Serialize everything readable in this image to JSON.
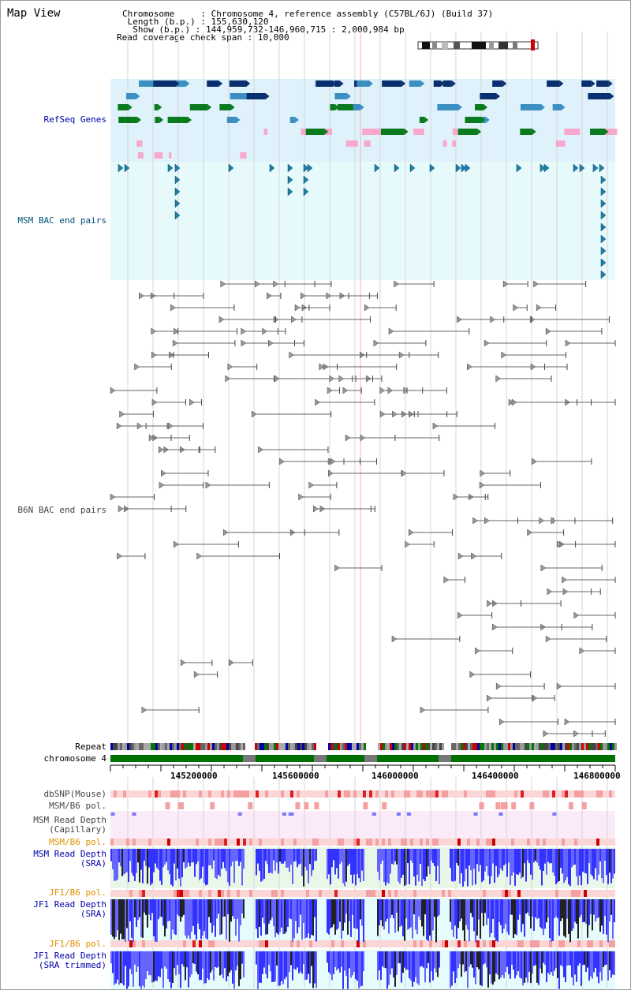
{
  "title": "Map View",
  "info": {
    "chromosome_label": "Chromosome",
    "chromosome_value": "Chromosome 4, reference assembly (C57BL/6J) (Build 37)",
    "length_label": "Length (b.p.)",
    "length_value": "155,630,120",
    "show_label": "Show (b.p.)",
    "show_value": "144,959,732-146,960,715 : 2,000,984 bp",
    "span_label": "Read coverage check span",
    "span_value": "10,000"
  },
  "tracks": {
    "refseq": "RefSeq Genes",
    "msm_bac": "MSM BAC end pairs",
    "b6n_bac": "B6N BAC end pairs",
    "repeat": "Repeat",
    "chromosome": "chromosome 4",
    "dbsnp": "dbSNP(Mouse)",
    "msm_pol1": "MSM/B6 pol.",
    "msm_depth_cap_1": "MSM Read Depth",
    "msm_depth_cap_2": "(Capillary)",
    "msm_pol2": "MSM/B6 pol.",
    "msm_depth_sra_1": "MSM Read Depth",
    "msm_depth_sra_2": "(SRA)",
    "jf1_pol1": "JF1/B6 pol.",
    "jf1_depth_sra_1": "JF1 Read Depth",
    "jf1_depth_sra_2": "(SRA)",
    "jf1_pol2": "JF1/B6 pol.",
    "jf1_depth_trim_1": "JF1 Read Depth",
    "jf1_depth_trim_2": "(SRA trimmed)"
  },
  "ruler": {
    "ticks": [
      "145200000",
      "145600000",
      "146000000",
      "146400000",
      "146800000"
    ]
  },
  "colors": {
    "refseq_bg": "#dff2fb",
    "bac_bg": "#e6f9fb",
    "gene_dark": "#0a2f6e",
    "gene_mid": "#3b8fc2",
    "gene_green": "#0a7a1e",
    "gene_pink": "#f7a8cc",
    "bac_teal": "#1f7fa6",
    "b6n_gray": "#666666",
    "chrom_green": "#007000",
    "depth_blue": "#3333ff",
    "depth_black": "#222222",
    "pol_red": "#f06060"
  }
}
